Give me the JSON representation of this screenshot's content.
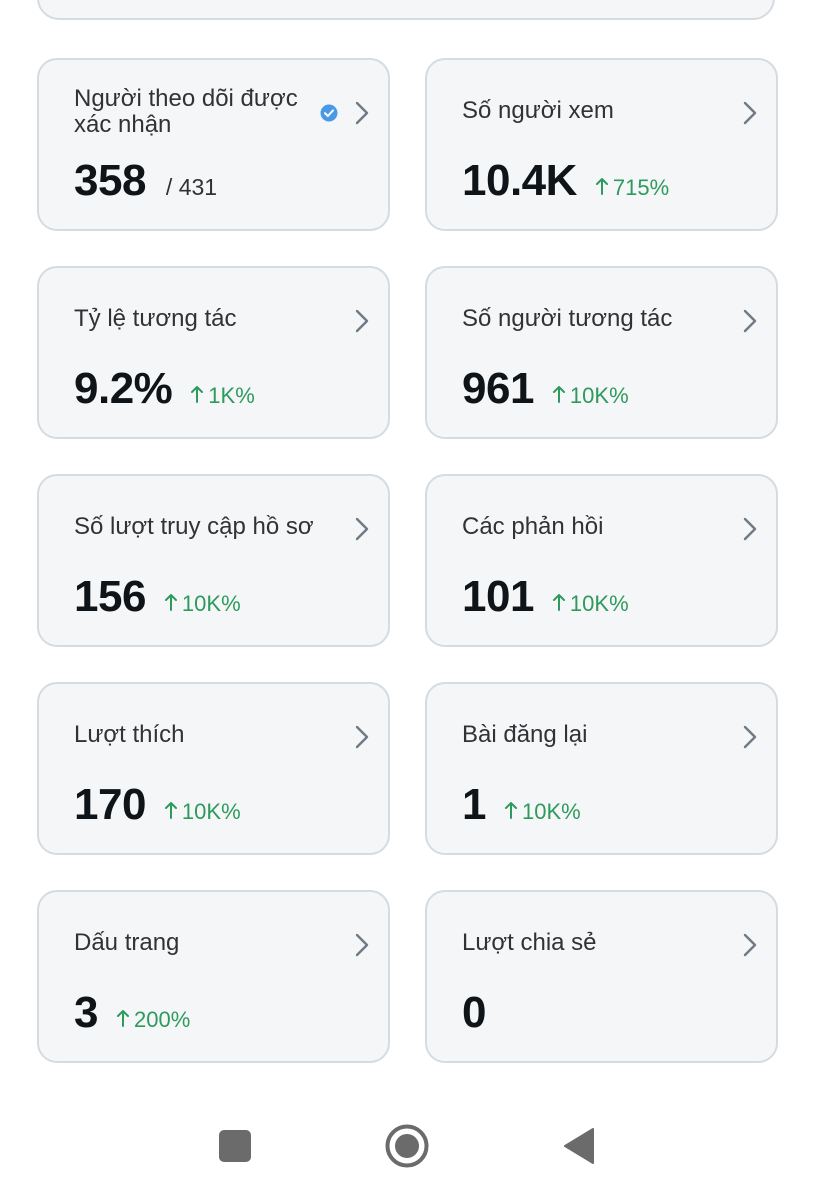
{
  "stats": [
    {
      "title": "Người theo dõi được xác nhận",
      "value": "358",
      "sub": "/ 431",
      "change": "",
      "verified": true
    },
    {
      "title": "Số người xem",
      "value": "10.4K",
      "sub": "",
      "change": "715%"
    },
    {
      "title": "Tỷ lệ tương tác",
      "value": "9.2%",
      "sub": "",
      "change": "1K%"
    },
    {
      "title": "Số người tương tác",
      "value": "961",
      "sub": "",
      "change": "10K%"
    },
    {
      "title": "Số lượt truy cập hồ sơ",
      "value": "156",
      "sub": "",
      "change": "10K%"
    },
    {
      "title": "Các phản hồi",
      "value": "101",
      "sub": "",
      "change": "10K%"
    },
    {
      "title": "Lượt thích",
      "value": "170",
      "sub": "",
      "change": "10K%"
    },
    {
      "title": "Bài đăng lại",
      "value": "1",
      "sub": "",
      "change": "10K%"
    },
    {
      "title": "Dấu trang",
      "value": "3",
      "sub": "",
      "change": "200%"
    },
    {
      "title": "Lượt chia sẻ",
      "value": "0",
      "sub": "",
      "change": ""
    }
  ],
  "colors": {
    "positive_change": "#2e9a5e",
    "verified_badge": "#4a99e9",
    "card_background": "#f5f6f7",
    "card_border": "#d6dbe0"
  },
  "icons": {
    "chevron": "chevron-right-icon",
    "change_arrow": "arrow-up-icon",
    "verified": "verified-badge-icon",
    "nav_recents": "square-icon",
    "nav_home": "circle-icon",
    "nav_back": "triangle-left-icon"
  }
}
